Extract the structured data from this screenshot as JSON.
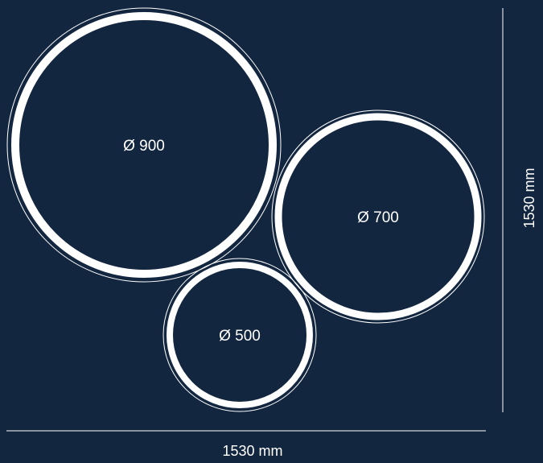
{
  "colors": {
    "background": "#13263f",
    "ring": "#ffffff"
  },
  "rings": [
    {
      "id": "ring-900",
      "label": "Ø 900"
    },
    {
      "id": "ring-700",
      "label": "Ø 700"
    },
    {
      "id": "ring-500",
      "label": "Ø 500"
    }
  ],
  "dimensions": {
    "width_label": "1530 mm",
    "height_label": "1530 mm"
  }
}
